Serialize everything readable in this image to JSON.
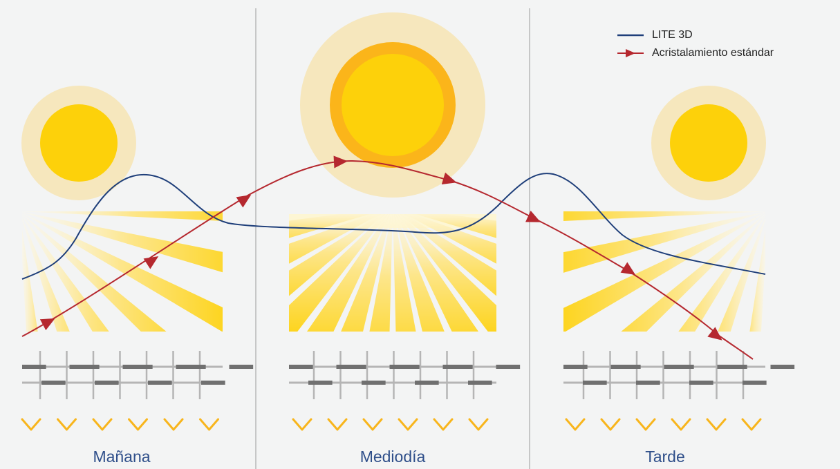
{
  "panels": [
    {
      "label": "Mañana"
    },
    {
      "label": "Mediodía"
    },
    {
      "label": "Tarde"
    }
  ],
  "legend": {
    "lite3d": {
      "label": "LITE 3D",
      "color": "#1f3f7a"
    },
    "standard": {
      "label": "Acristalamiento estándar",
      "color": "#b5282f"
    }
  },
  "colors": {
    "background": "#f3f4f4",
    "divider": "#b8b8b8",
    "sun_core": "#fdd10a",
    "sun_ring": "#fbb51a",
    "sun_halo": "#f6e7bd",
    "ray": "#fdd10a",
    "chevron": "#f8b51c",
    "glazing_dark": "#707070",
    "glazing_light": "#b5b5b5"
  }
}
